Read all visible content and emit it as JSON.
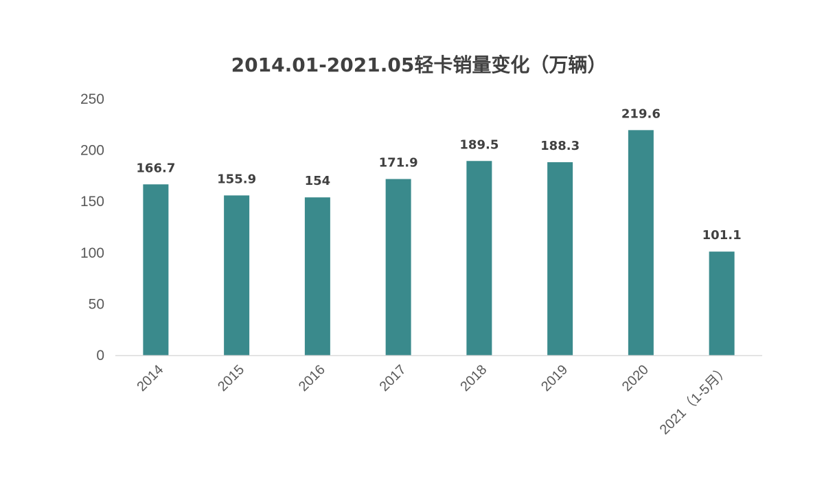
{
  "chart_data": {
    "type": "bar",
    "title": "2014.01-2021.05轻卡销量变化（万辆）",
    "categories": [
      "2014",
      "2015",
      "2016",
      "2017",
      "2018",
      "2019",
      "2020",
      "2021（1-5月）"
    ],
    "series": [
      {
        "values": [
          166.7,
          155.9,
          154,
          171.9,
          189.5,
          188.3,
          219.6,
          101.1
        ],
        "data_labels": [
          "166.7",
          "155.9",
          "154",
          "171.9",
          "189.5",
          "188.3",
          "219.6",
          "101.1"
        ],
        "color": "#3a8a8c"
      }
    ],
    "y_ticks": [
      0,
      50,
      100,
      150,
      200,
      250
    ],
    "ylim": [
      0,
      250
    ],
    "xlabel": "",
    "ylabel": "",
    "grid": false,
    "legend": "none",
    "x_tick_rotation_deg": -45
  },
  "colors": {
    "bar": "#3a8a8c",
    "axis_line": "#d9d9d9",
    "title": "#404040",
    "tick_text": "#595959",
    "data_label": "#404040"
  }
}
